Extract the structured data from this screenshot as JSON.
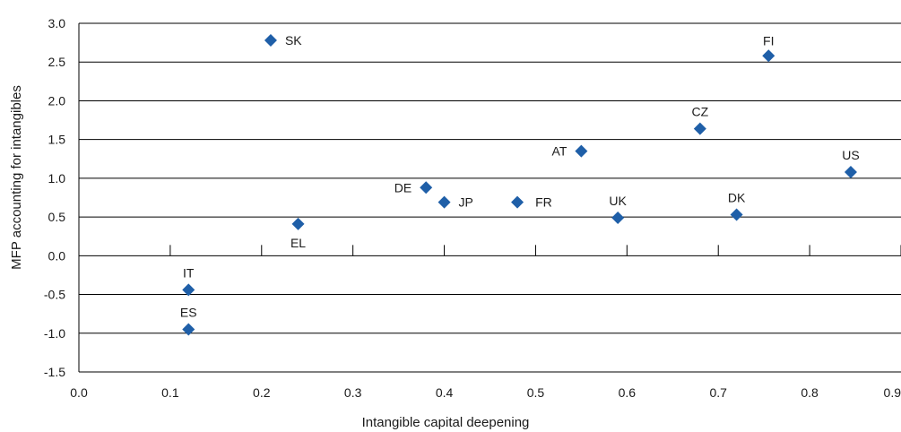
{
  "chart_data": {
    "type": "scatter",
    "xlabel": "Intangible capital deepening",
    "ylabel": "MFP accounting for intangibles",
    "xlim": [
      0.0,
      0.9
    ],
    "ylim": [
      -1.5,
      3.0
    ],
    "x_ticks": [
      "0.0",
      "0.1",
      "0.2",
      "0.3",
      "0.4",
      "0.5",
      "0.6",
      "0.7",
      "0.8",
      "0.9"
    ],
    "y_ticks": [
      "3.0",
      "2.5",
      "2.0",
      "1.5",
      "1.0",
      "0.5",
      "0.0",
      "-0.5",
      "-1.0",
      "-1.5"
    ],
    "grid": "horizontal",
    "marker": "diamond",
    "marker_color": "#1f5fa8",
    "points": [
      {
        "label": "SK",
        "x": 0.21,
        "y": 2.78
      },
      {
        "label": "FI",
        "x": 0.755,
        "y": 2.58
      },
      {
        "label": "CZ",
        "x": 0.68,
        "y": 1.64
      },
      {
        "label": "AT",
        "x": 0.55,
        "y": 1.35
      },
      {
        "label": "US",
        "x": 0.845,
        "y": 1.08
      },
      {
        "label": "DE",
        "x": 0.38,
        "y": 0.88
      },
      {
        "label": "JP",
        "x": 0.4,
        "y": 0.69
      },
      {
        "label": "FR",
        "x": 0.48,
        "y": 0.69
      },
      {
        "label": "DK",
        "x": 0.72,
        "y": 0.53
      },
      {
        "label": "UK",
        "x": 0.59,
        "y": 0.49
      },
      {
        "label": "EL",
        "x": 0.24,
        "y": 0.41
      },
      {
        "label": "IT",
        "x": 0.12,
        "y": -0.44
      },
      {
        "label": "ES",
        "x": 0.12,
        "y": -0.95
      }
    ]
  }
}
